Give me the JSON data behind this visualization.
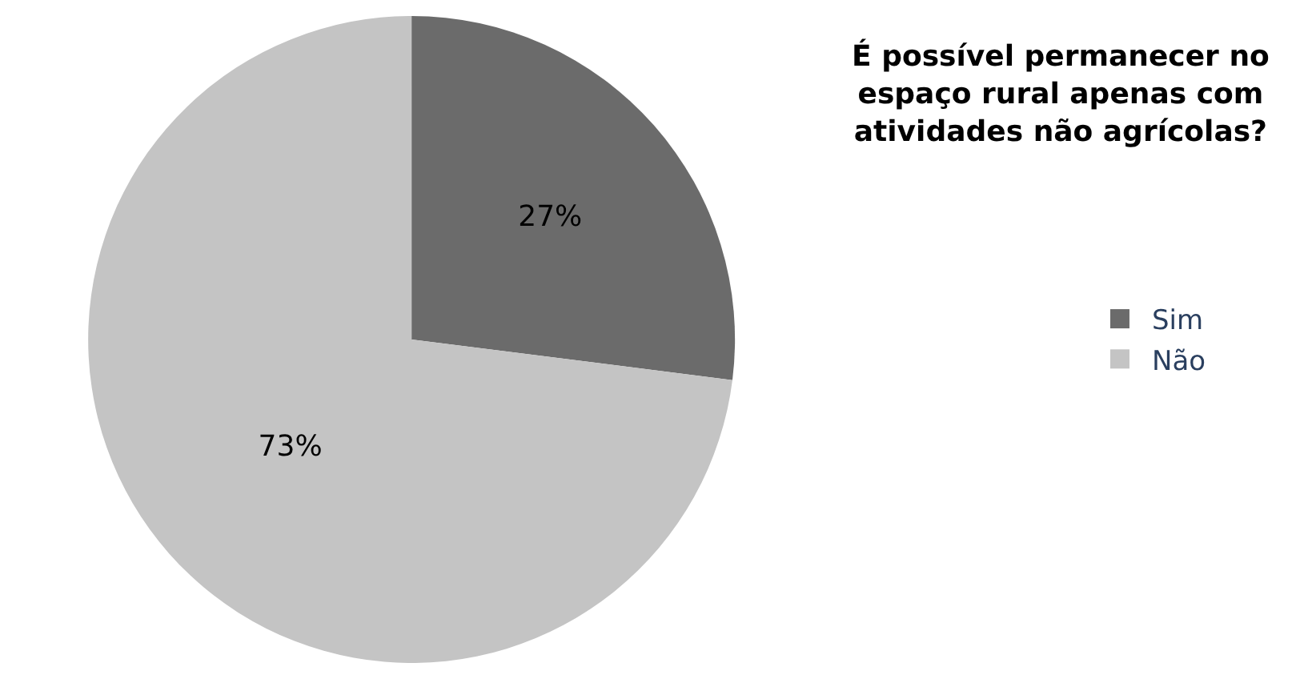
{
  "chart_data": {
    "type": "pie",
    "title": "É possível permanecer no espaço rural apenas com atividades não agrícolas?",
    "categories": [
      "Sim",
      "Não"
    ],
    "values": [
      27,
      73
    ],
    "colors": [
      "#6b6b6b",
      "#c4c4c4"
    ],
    "value_labels": [
      "27%",
      "73%"
    ],
    "legend": "right"
  }
}
